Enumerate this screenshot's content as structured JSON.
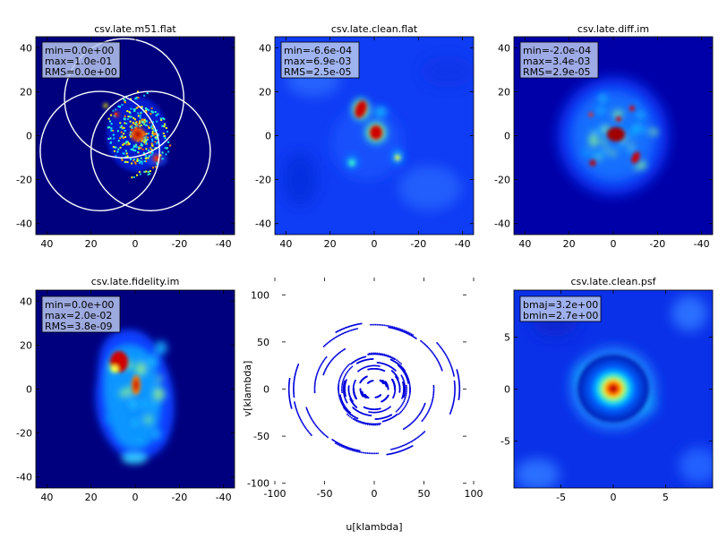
{
  "chart_data": [
    {
      "type": "heatmap",
      "title": "csv.late.m51.flat",
      "xlim": [
        45,
        -45
      ],
      "ylim": [
        -45,
        45
      ],
      "xticks": [
        40,
        20,
        0,
        -20,
        -40
      ],
      "yticks": [
        40,
        20,
        0,
        -20,
        -40
      ],
      "stats": [
        "min=0.0e+00",
        "max=1.0e-01",
        "RMS=0.0e+00"
      ],
      "overlay_circles": [
        {
          "cx": 5,
          "cy": 17,
          "r": 27
        },
        {
          "cx": 16,
          "cy": -7,
          "r": 27
        },
        {
          "cx": -7,
          "cy": -7,
          "r": 27
        }
      ],
      "colormap": "jet"
    },
    {
      "type": "heatmap",
      "title": "csv.late.clean.flat",
      "xlim": [
        45,
        -45
      ],
      "ylim": [
        -45,
        45
      ],
      "xticks": [
        40,
        20,
        0,
        -20,
        -40
      ],
      "yticks": [
        40,
        20,
        0,
        -20,
        -40
      ],
      "stats": [
        "min=-6.6e-04",
        "max=6.9e-03",
        "RMS=2.5e-05"
      ],
      "colormap": "jet"
    },
    {
      "type": "heatmap",
      "title": "csv.late.diff.im",
      "xlim": [
        45,
        -45
      ],
      "ylim": [
        -45,
        45
      ],
      "xticks": [
        40,
        20,
        0,
        -20,
        -40
      ],
      "yticks": [
        40,
        20,
        0,
        -20,
        -40
      ],
      "stats": [
        "min=-2.0e-04",
        "max=3.4e-03",
        "RMS=2.9e-05"
      ],
      "colormap": "jet"
    },
    {
      "type": "heatmap",
      "title": "csv.late.fidelity.im",
      "xlim": [
        45,
        -45
      ],
      "ylim": [
        -45,
        45
      ],
      "xticks": [
        40,
        20,
        0,
        -20,
        -40
      ],
      "yticks": [
        40,
        20,
        0,
        -20,
        -40
      ],
      "stats": [
        "min=0.0e+00",
        "max=2.0e-02",
        "RMS=3.8e-09"
      ],
      "colormap": "jet"
    },
    {
      "type": "scatter",
      "title": "",
      "xlabel": "u[klambda]",
      "ylabel": "v[klambda]",
      "xlim": [
        -100,
        100
      ],
      "ylim": [
        -105,
        105
      ],
      "xticks": [
        -100,
        -50,
        0,
        50,
        100
      ],
      "yticks": [
        100,
        50,
        0,
        -50,
        -100
      ],
      "point_color": "#0000dd",
      "uv_rings_max_radius": 88
    },
    {
      "type": "heatmap",
      "title": "csv.late.clean.psf",
      "xlim": [
        -9.5,
        9.5
      ],
      "ylim": [
        -9.5,
        9.5
      ],
      "xticks": [
        -5,
        0,
        5
      ],
      "yticks": [
        5,
        0,
        -5
      ],
      "stats": [
        "bmaj=3.2e+00",
        "bmin=2.7e+00"
      ],
      "colormap": "jet"
    }
  ]
}
